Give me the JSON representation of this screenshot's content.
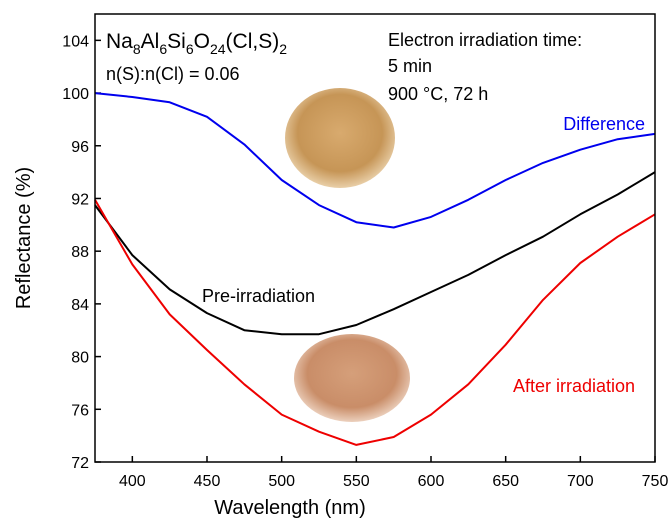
{
  "chart_data": {
    "type": "line",
    "formula": [
      "Na",
      "8",
      "Al",
      "6",
      "Si",
      "6",
      "O",
      "24",
      "(Cl,S)",
      "2"
    ],
    "annotations": [
      "n(S):n(Cl) = 0.06",
      "Electron irradiation time:",
      "5 min",
      "900 °C, 72 h"
    ],
    "x_label": "Wavelength (nm)",
    "y_label": "Reflectance (%)",
    "x": [
      375,
      400,
      425,
      450,
      475,
      500,
      525,
      550,
      575,
      600,
      625,
      650,
      675,
      700,
      725,
      750
    ],
    "series": [
      {
        "name": "Difference",
        "color": "#0000ee",
        "values": [
          100.0,
          99.7,
          99.3,
          98.2,
          96.1,
          93.4,
          91.5,
          90.2,
          89.8,
          90.6,
          91.9,
          93.4,
          94.7,
          95.7,
          96.5,
          96.9
        ]
      },
      {
        "name": "Pre-irradiation",
        "color": "#000000",
        "values": [
          91.5,
          87.7,
          85.1,
          83.3,
          82.0,
          81.7,
          81.7,
          82.4,
          83.6,
          84.9,
          86.2,
          87.7,
          89.1,
          90.8,
          92.3,
          94.0
        ]
      },
      {
        "name": "After irradiation",
        "color": "#ee0000",
        "values": [
          91.9,
          87.0,
          83.2,
          80.5,
          77.9,
          75.6,
          74.3,
          73.3,
          73.9,
          75.6,
          77.9,
          80.9,
          84.3,
          87.1,
          89.1,
          90.8
        ]
      }
    ],
    "xlim": [
      375,
      750
    ],
    "xticks": [
      400,
      450,
      500,
      550,
      600,
      650,
      700,
      750
    ],
    "ylim": [
      72,
      106
    ],
    "yticks": [
      72,
      76,
      80,
      84,
      88,
      92,
      96,
      100,
      104
    ]
  }
}
